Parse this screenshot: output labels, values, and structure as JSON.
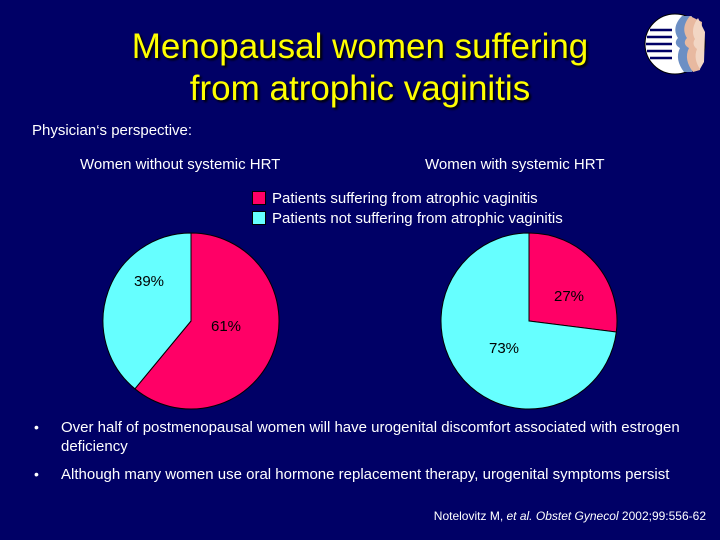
{
  "title_line1": "Menopausal women suffering",
  "title_line2": "from atrophic vaginitis",
  "subtitle": "Physician‘s perspective:",
  "legend": [
    {
      "label": "Patients suffering from atrophic vaginitis",
      "color": "#ff0066"
    },
    {
      "label": "Patients not suffering from atrophic vaginitis",
      "color": "#66ffff"
    }
  ],
  "chart_data": [
    {
      "type": "pie",
      "title": "Women without systemic HRT",
      "slices": [
        {
          "label": "Patients suffering from atrophic vaginitis",
          "value": 61,
          "data_label": "61%",
          "color": "#ff0066"
        },
        {
          "label": "Patients not suffering from atrophic vaginitis",
          "value": 39,
          "data_label": "39%",
          "color": "#66ffff"
        }
      ],
      "legend_position": "top"
    },
    {
      "type": "pie",
      "title": "Women with systemic HRT",
      "slices": [
        {
          "label": "Patients suffering from atrophic vaginitis",
          "value": 27,
          "data_label": "27%",
          "color": "#ff0066"
        },
        {
          "label": "Patients not suffering from atrophic vaginitis",
          "value": 73,
          "data_label": "73%",
          "color": "#66ffff"
        }
      ],
      "legend_position": "top"
    }
  ],
  "bullets": [
    "Over half of postmenopausal women will have urogenital discomfort associated with estrogen deficiency",
    "Although many women use oral hormone replacement therapy, urogenital symptoms persist"
  ],
  "bullet_glyph": "•",
  "citation": {
    "author": "Notelovitz M,",
    "etal": "et al.",
    "journal": "Obstet Gynecol",
    "ref": "2002;99:556-62"
  },
  "logo_icon": "profile-faces-logo-icon"
}
